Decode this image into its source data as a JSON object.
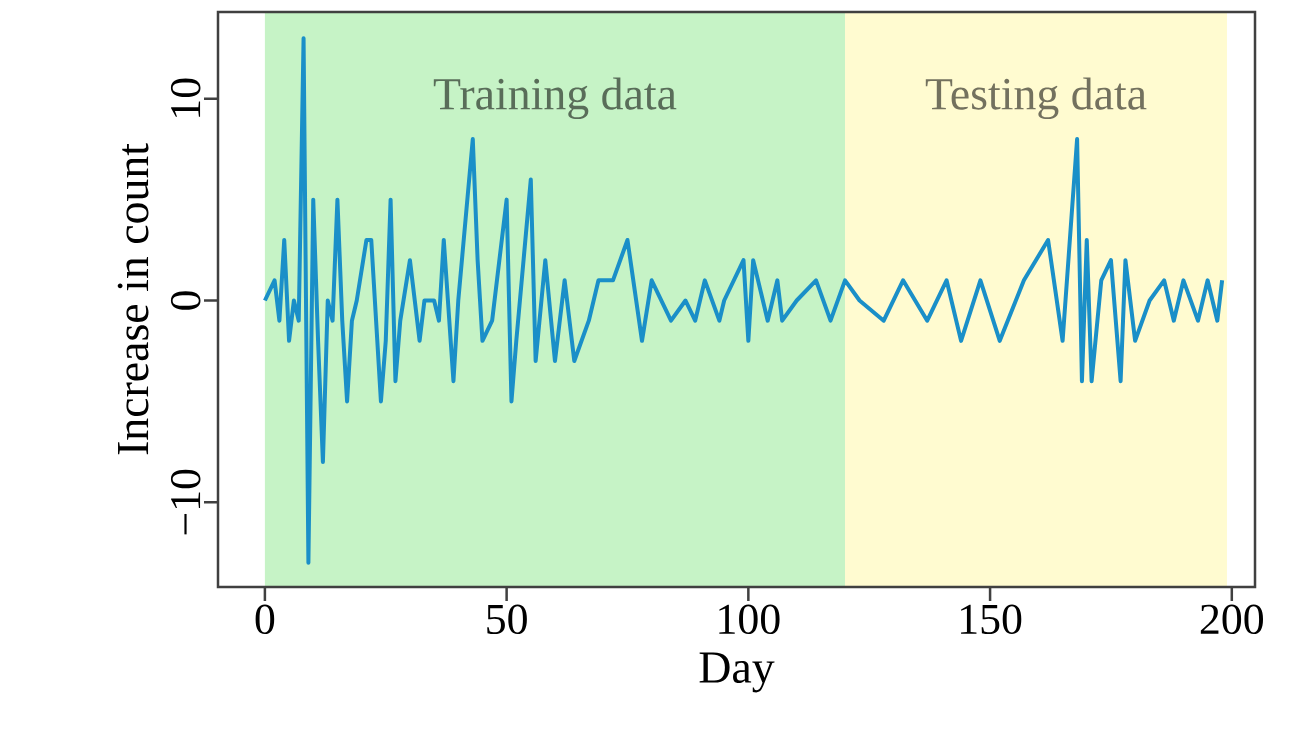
{
  "chart_data": {
    "type": "line",
    "xlabel": "Day",
    "ylabel": "Increase in count",
    "x": [
      0,
      2,
      3,
      4,
      5,
      6,
      7,
      8,
      9,
      10,
      11,
      12,
      13,
      14,
      15,
      16,
      17,
      18,
      19,
      21,
      22,
      24,
      25,
      26,
      27,
      28,
      30,
      32,
      33,
      34,
      35,
      36,
      37,
      39,
      40,
      43,
      44,
      45,
      47,
      50,
      51,
      52,
      55,
      56,
      58,
      60,
      62,
      64,
      67,
      69,
      72,
      75,
      78,
      80,
      82,
      84,
      87,
      89,
      91,
      94,
      95,
      99,
      100,
      101,
      104,
      106,
      107,
      110,
      114,
      117,
      120,
      123,
      128,
      132,
      137,
      141,
      144,
      148,
      152,
      157,
      162,
      165,
      168,
      169,
      170,
      171,
      173,
      175,
      177,
      178,
      180,
      183,
      186,
      188,
      190,
      193,
      195,
      197,
      198
    ],
    "series": [
      {
        "color": "#1a8fc8",
        "values": [
          0,
          1,
          -1,
          3,
          -2,
          0,
          -1,
          13,
          -13,
          5,
          -2,
          -8,
          0,
          -1,
          5,
          -1,
          -5,
          -1,
          0,
          3,
          3,
          -5,
          -2,
          5,
          -4,
          -1,
          2,
          -2,
          0,
          0,
          0,
          -1,
          3,
          -4,
          0,
          8,
          2,
          -2,
          -1,
          5,
          -5,
          -2,
          6,
          -3,
          2,
          -3,
          1,
          -3,
          -1,
          1,
          1,
          3,
          -2,
          1,
          0,
          -1,
          0,
          -1,
          1,
          -1,
          0,
          2,
          -2,
          2,
          -1,
          1,
          -1,
          0,
          1,
          -1,
          1,
          0,
          -1,
          1,
          -1,
          1,
          -2,
          1,
          -2,
          1,
          3,
          -2,
          8,
          -4,
          3,
          -4,
          1,
          2,
          -4,
          2,
          -2,
          0,
          1,
          -1,
          1,
          -1,
          1,
          -1,
          1
        ]
      }
    ],
    "xlim": [
      -9.7,
      204.8
    ],
    "ylim": [
      -14.2,
      14.3
    ],
    "xticks": [
      0,
      50,
      100,
      150,
      200
    ],
    "yticks": [
      {
        "value": -10,
        "label": "−10"
      },
      0,
      10
    ],
    "grid": false,
    "marker": "none",
    "line_style": "solid",
    "bands": [
      {
        "axis": "x",
        "from": 0,
        "to": 120,
        "label": "Training data",
        "color": "#c6f3c6"
      },
      {
        "axis": "x",
        "from": 120,
        "to": 199,
        "label": "Testing data",
        "color": "#fffbd0"
      }
    ]
  }
}
